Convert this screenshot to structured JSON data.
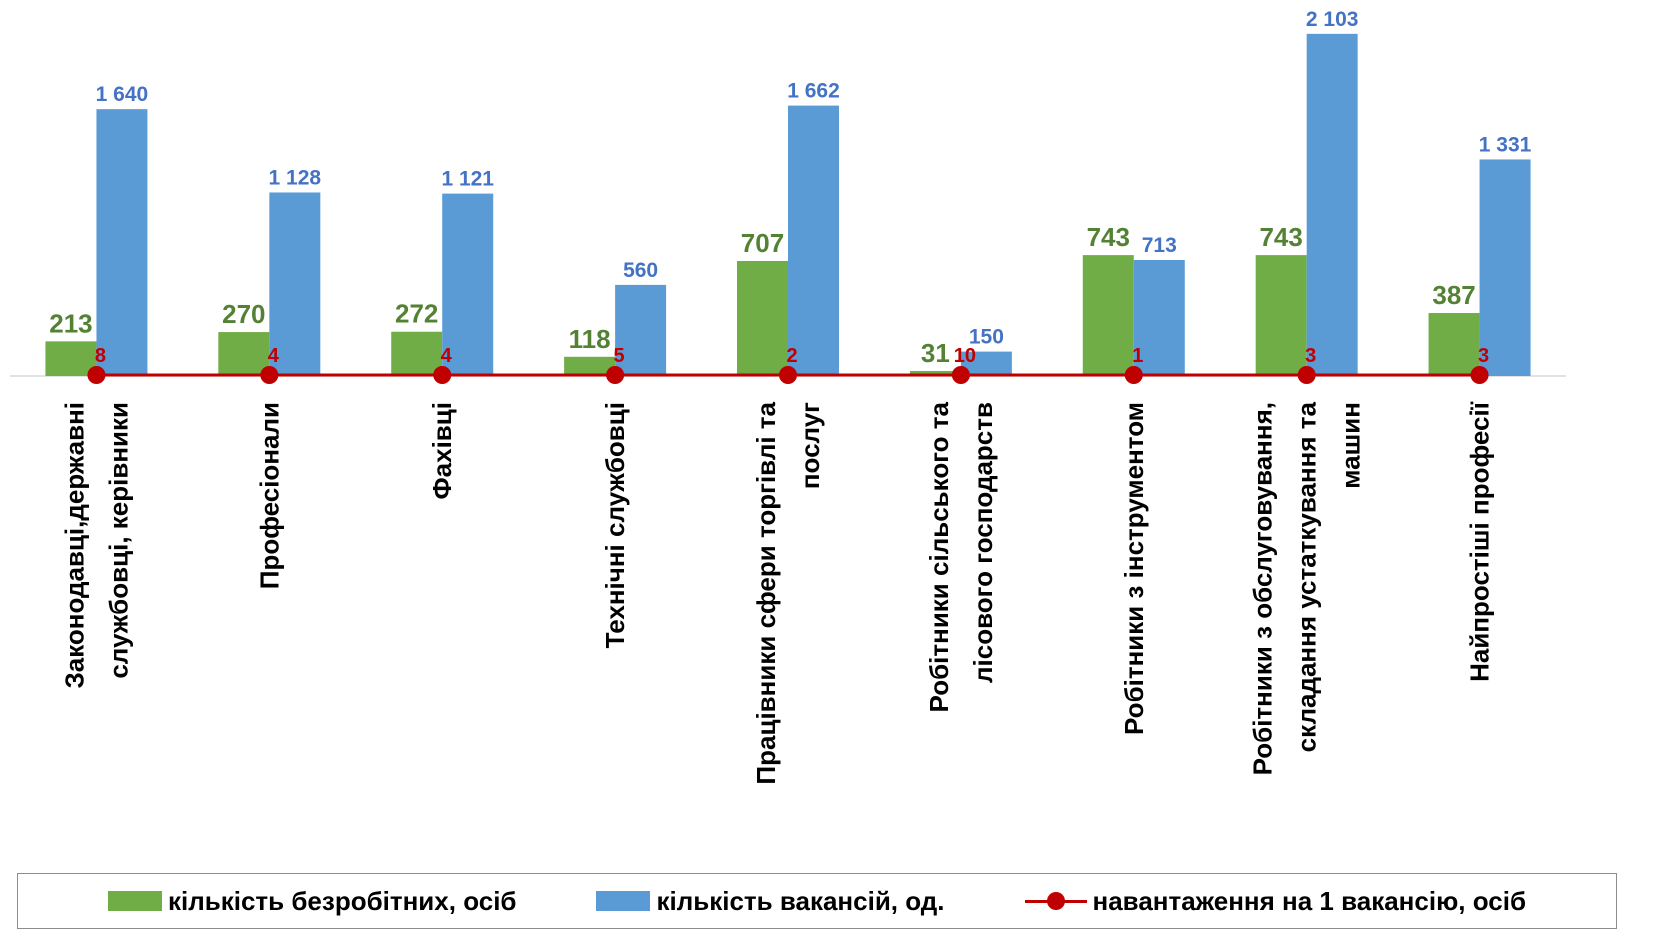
{
  "chart_data": {
    "type": "bar",
    "categories": [
      [
        "Законодавці,державні",
        "службовці, керівники"
      ],
      [
        "Професіонали"
      ],
      [
        "Фахівці"
      ],
      [
        "Технічні службовці"
      ],
      [
        "Працівники сфери торгівлі та",
        "послуг"
      ],
      [
        "Робітники сільського та",
        "лісового господарств"
      ],
      [
        "Робітники з інструментом"
      ],
      [
        "Робітники з обслуговування,",
        "складання устаткування та",
        "машин"
      ],
      [
        "Найпростіші професії"
      ]
    ],
    "series": [
      {
        "name": "кількість безробітних, осіб",
        "kind": "bar",
        "color": "#70ad47",
        "label_color": "#548235",
        "values": [
          213,
          270,
          272,
          118,
          707,
          31,
          743,
          743,
          387
        ],
        "labels": [
          "213",
          "270",
          "272",
          "118",
          "707",
          "31",
          "743",
          "743",
          "387"
        ]
      },
      {
        "name": "кількість вакансій, од.",
        "kind": "bar",
        "color": "#5b9bd5",
        "label_color": "#4472c4",
        "values": [
          1640,
          1128,
          1121,
          560,
          1662,
          150,
          713,
          2103,
          1331
        ],
        "labels": [
          "1 640",
          "1 128",
          "1 121",
          "560",
          "1 662",
          "150",
          "713",
          "2 103",
          "1 331"
        ]
      },
      {
        "name": "навантаження на 1 вакансію, осіб",
        "kind": "line",
        "color": "#c00000",
        "values": [
          8,
          4,
          4,
          5,
          2,
          10,
          1,
          3,
          3
        ],
        "labels": [
          "8",
          "4",
          "4",
          "5",
          "2",
          "10",
          "1",
          "3",
          "3"
        ]
      }
    ],
    "ylim": [
      0,
      2250
    ],
    "legend": "bottom",
    "grid": false
  }
}
